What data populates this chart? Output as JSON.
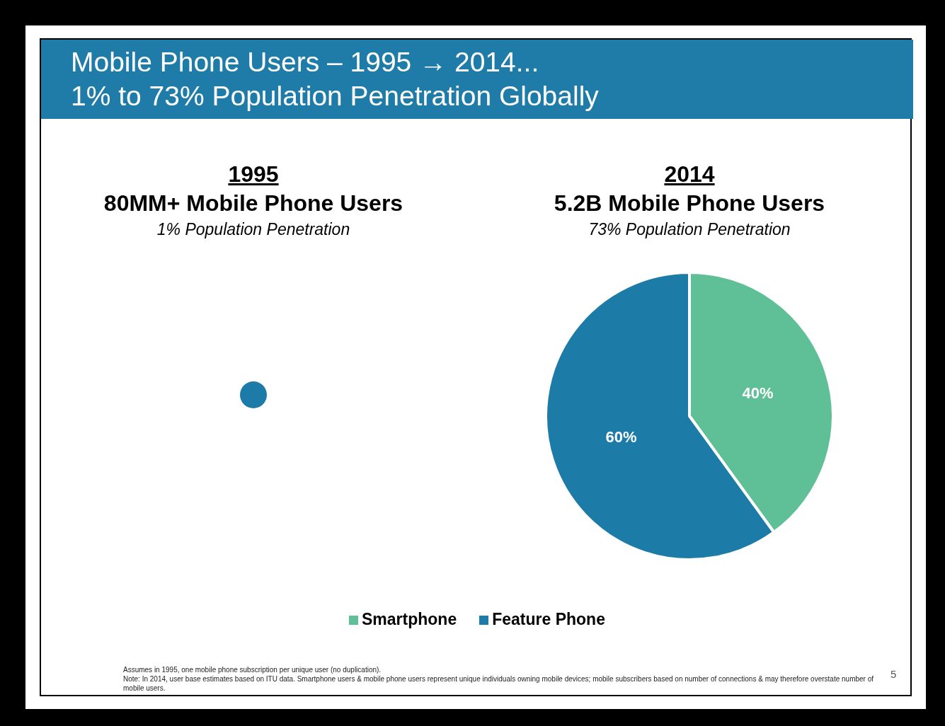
{
  "chart_data": [
    {
      "type": "other",
      "title": "Mobile Phone Users – 1995 → 2014...",
      "subtitle": "1% to 73% Population Penetration Globally"
    },
    {
      "type": "pie",
      "title": "1995",
      "subtitle": "80MM+ Mobile Phone Users",
      "annotations": [
        "1% Population Penetration"
      ],
      "categories": [
        null
      ],
      "values": [
        100
      ],
      "colors": [
        "#1d7ba7"
      ]
    },
    {
      "type": "pie",
      "title": "2014",
      "subtitle": "5.2B Mobile Phone Users",
      "annotations": [
        "73% Population Penetration"
      ],
      "categories": [
        "Smartphone",
        "Feature Phone"
      ],
      "values": [
        40,
        60
      ],
      "colors": [
        "#5fc097",
        "#1d7ba7"
      ],
      "value_labels": [
        "40%",
        "60%"
      ],
      "legend": "bottom"
    },
    {
      "type": "other",
      "annotations": [
        "Assumes in 1995, one mobile phone subscription per unique user (no duplication).",
        "Note: In 2014, user base estimates based on ITU data. Smartphone users & mobile phone users represent unique individuals owning mobile devices; mobile subscribers based on number of connections & may therefore overstate number of mobile users.",
        "5"
      ]
    }
  ]
}
